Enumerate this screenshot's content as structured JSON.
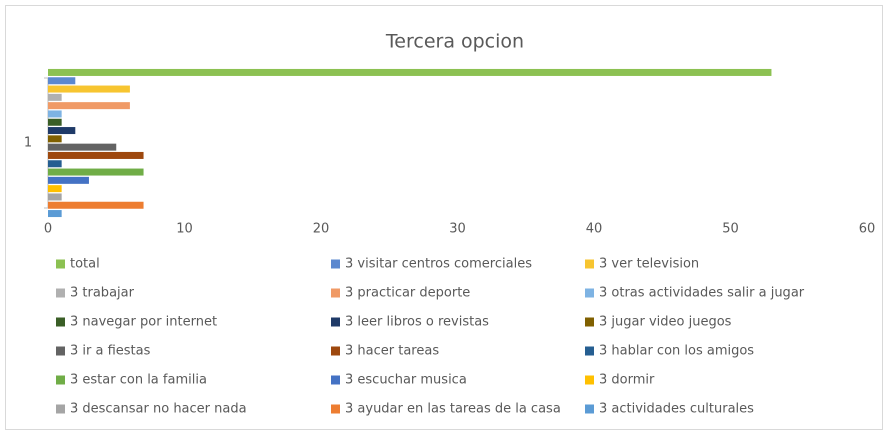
{
  "chart_data": {
    "type": "bar",
    "orientation": "horizontal",
    "title": "Tercera opcion",
    "categories": [
      "1"
    ],
    "xlim": [
      0,
      60
    ],
    "xticks": [
      0,
      10,
      20,
      30,
      40,
      50,
      60
    ],
    "grid": false,
    "legend": "bottom",
    "series": [
      {
        "name": "total",
        "color": "#8cc152",
        "values": [
          53
        ]
      },
      {
        "name": "3 visitar centros comerciales",
        "color": "#5b88cf",
        "values": [
          2
        ]
      },
      {
        "name": "3 ver television",
        "color": "#f7c530",
        "values": [
          6
        ]
      },
      {
        "name": "3 trabajar",
        "color": "#b0b0b0",
        "values": [
          1
        ]
      },
      {
        "name": "3 practicar deporte",
        "color": "#f09a66",
        "values": [
          6
        ]
      },
      {
        "name": "3 otras actividades salir a jugar",
        "color": "#7eb3e3",
        "values": [
          1
        ]
      },
      {
        "name": "3 navegar por internet",
        "color": "#3a5e26",
        "values": [
          1
        ]
      },
      {
        "name": "3 leer libros o revistas",
        "color": "#1f3a68",
        "values": [
          2
        ]
      },
      {
        "name": "3 jugar video juegos",
        "color": "#806000",
        "values": [
          1
        ]
      },
      {
        "name": "3 ir a fiestas",
        "color": "#636363",
        "values": [
          5
        ]
      },
      {
        "name": "3 hacer tareas",
        "color": "#9e480e",
        "values": [
          7
        ]
      },
      {
        "name": "3 hablar con los amigos",
        "color": "#255e91",
        "values": [
          1
        ]
      },
      {
        "name": "3 estar con la familia",
        "color": "#70ad47",
        "values": [
          7
        ]
      },
      {
        "name": "3 escuchar musica",
        "color": "#4472c4",
        "values": [
          3
        ]
      },
      {
        "name": "3 dormir",
        "color": "#ffc000",
        "values": [
          1
        ]
      },
      {
        "name": "3 descansar no hacer nada",
        "color": "#a5a5a5",
        "values": [
          1
        ]
      },
      {
        "name": "3 ayudar en las tareas de la casa",
        "color": "#ed7d31",
        "values": [
          7
        ]
      },
      {
        "name": "3 actividades culturales",
        "color": "#5b9bd5",
        "values": [
          1
        ]
      }
    ]
  }
}
